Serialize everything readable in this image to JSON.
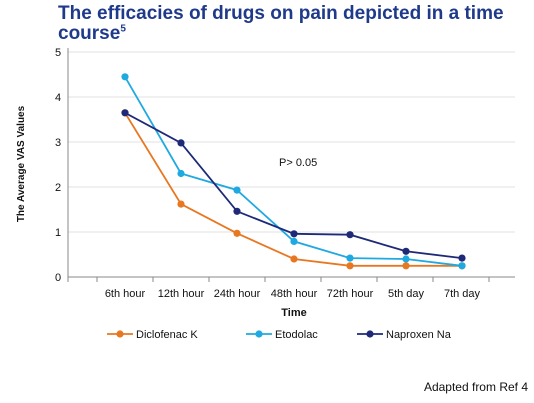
{
  "title": {
    "main": "The efficacies of drugs on pain depicted in a time course",
    "sup": "5"
  },
  "source_note": "Adapted from Ref 4",
  "chart_data": {
    "type": "line",
    "xlabel": "Time",
    "ylabel": "The Average VAS Values",
    "categories": [
      "6th hour",
      "12th hour",
      "24th hour",
      "48th hour",
      "72th hour",
      "5th day",
      "7th day"
    ],
    "ylim": [
      0,
      5
    ],
    "yticks": [
      "0",
      "1",
      "2",
      "3",
      "4",
      "5"
    ],
    "grid": true,
    "legend": "bottom",
    "annotation": "P> 0.05",
    "series": [
      {
        "name": "Diclofenac K",
        "color": "#e87722",
        "values": [
          3.65,
          1.62,
          0.97,
          0.4,
          0.25,
          0.25,
          0.25
        ]
      },
      {
        "name": "Etodolac",
        "color": "#1fa9e1",
        "values": [
          4.45,
          2.3,
          1.93,
          0.79,
          0.42,
          0.4,
          0.25
        ]
      },
      {
        "name": "Naproxen Na",
        "color": "#1e2a78",
        "values": [
          3.65,
          2.98,
          1.46,
          0.96,
          0.94,
          0.57,
          0.42
        ]
      }
    ]
  }
}
